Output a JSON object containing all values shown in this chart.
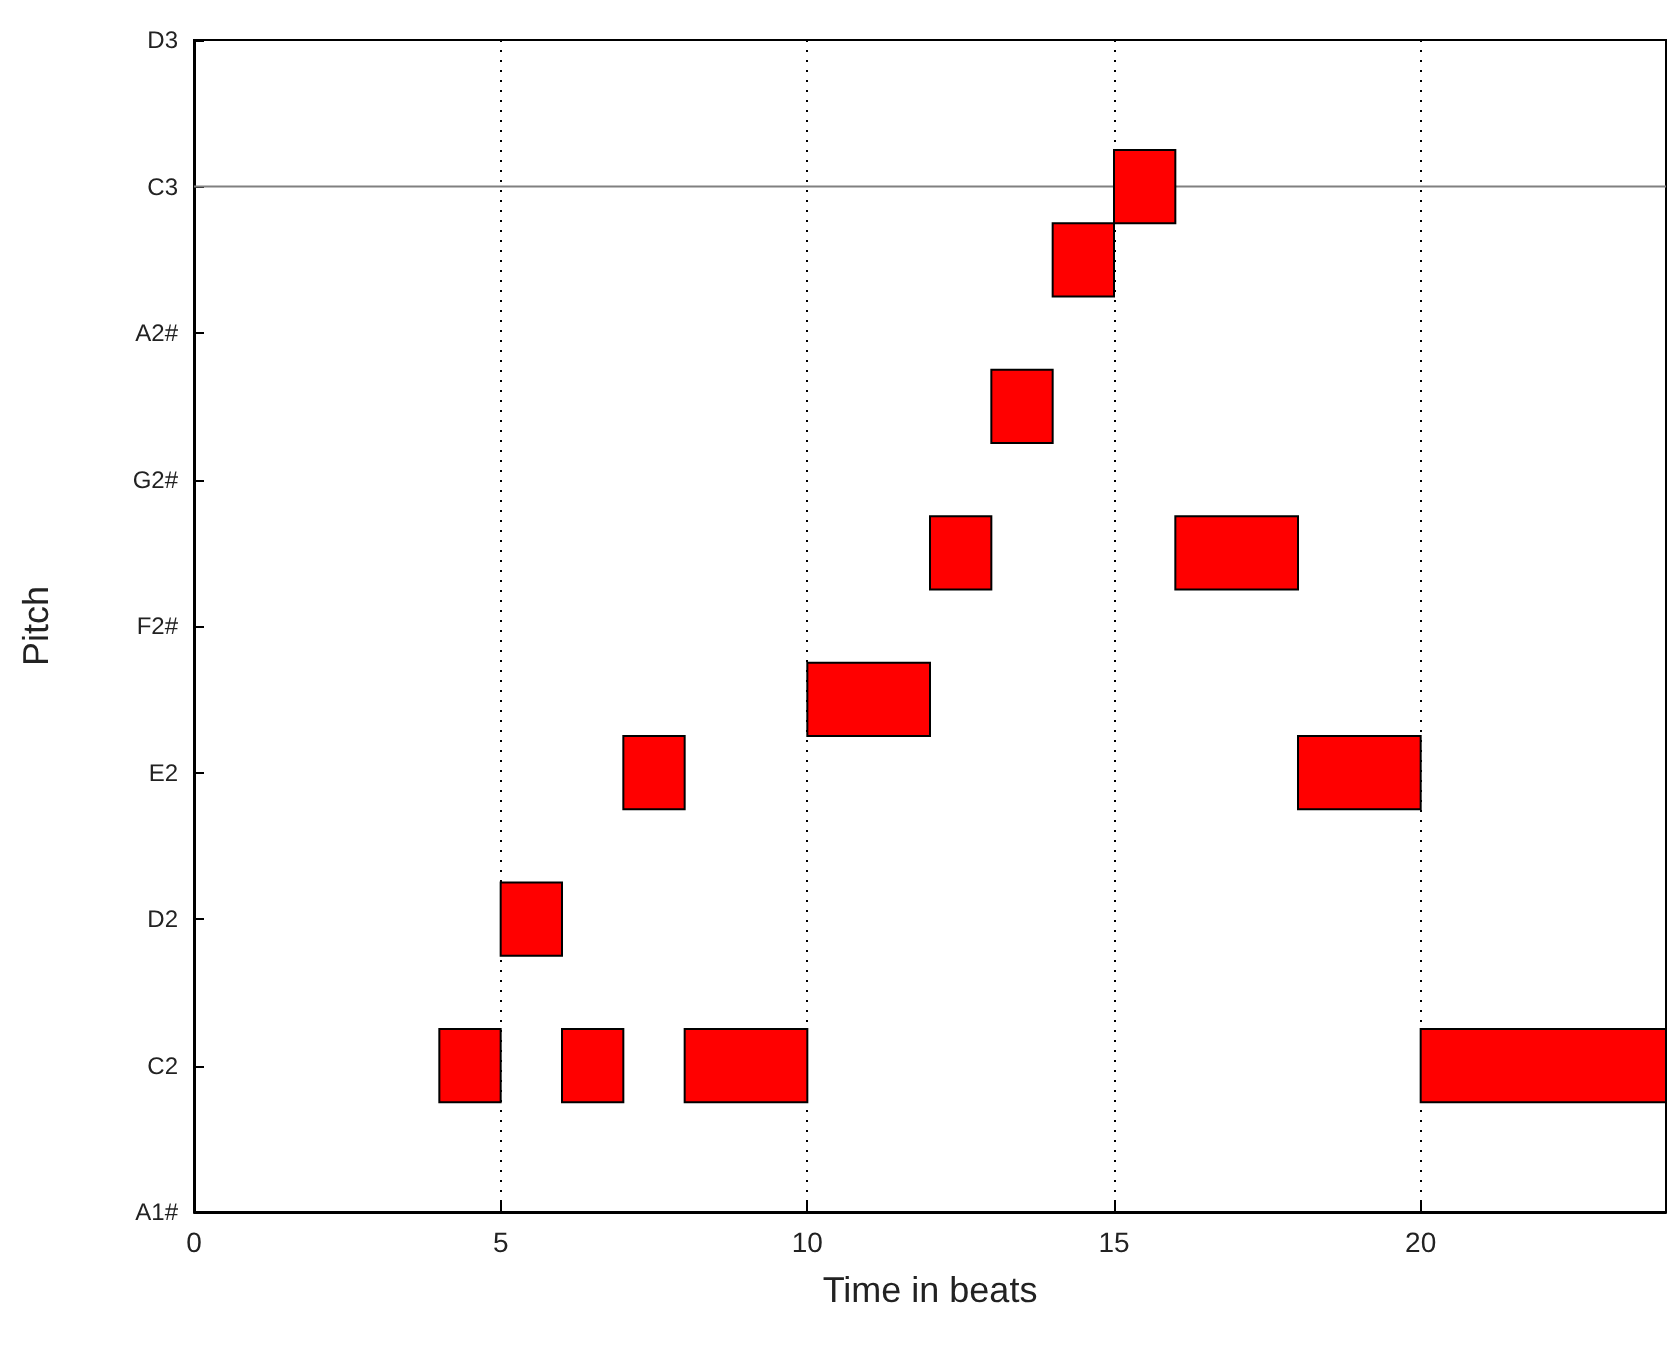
{
  "chart_data": {
    "type": "bar",
    "orientation": "horizontal",
    "xlabel": "Time in beats",
    "ylabel": "Pitch",
    "categories": [
      "D3",
      null,
      "C3",
      null,
      "A2#",
      null,
      "G2#",
      null,
      "F2#",
      null,
      "E2",
      null,
      "D2",
      null,
      "C2",
      null,
      "A1#"
    ],
    "series": [
      {
        "color": "#ff0000",
        "base": [
          null,
          null,
          15,
          14,
          null,
          13,
          null,
          12,
          null,
          10,
          7,
          null,
          5,
          null,
          4,
          null,
          null
        ],
        "values": [
          null,
          null,
          1,
          1,
          null,
          1,
          null,
          1,
          null,
          2,
          1,
          null,
          1,
          null,
          1,
          null,
          null
        ]
      },
      {
        "color": "#ff0000",
        "base": [
          null,
          null,
          null,
          null,
          null,
          null,
          null,
          16,
          null,
          null,
          18,
          null,
          null,
          null,
          6,
          null,
          null
        ],
        "values": [
          null,
          null,
          null,
          null,
          null,
          null,
          null,
          2,
          null,
          null,
          2,
          null,
          null,
          null,
          1,
          null,
          null
        ]
      },
      {
        "color": "#ff0000",
        "base": [
          null,
          null,
          null,
          null,
          null,
          null,
          null,
          null,
          null,
          null,
          null,
          null,
          null,
          null,
          8,
          null,
          null
        ],
        "values": [
          null,
          null,
          null,
          null,
          null,
          null,
          null,
          null,
          null,
          null,
          null,
          null,
          null,
          null,
          2,
          null,
          null
        ]
      },
      {
        "color": "#ff0000",
        "base": [
          null,
          null,
          null,
          null,
          null,
          null,
          null,
          null,
          null,
          null,
          null,
          null,
          null,
          null,
          20,
          null,
          null
        ],
        "values": [
          null,
          null,
          null,
          null,
          null,
          null,
          null,
          null,
          null,
          null,
          null,
          null,
          null,
          null,
          4,
          null,
          null
        ]
      }
    ],
    "xlim": [
      0,
      24
    ],
    "xticks": [
      0,
      5,
      10,
      15,
      20
    ],
    "grid": "x",
    "ref_lines": [
      {
        "axis": "y",
        "value": "C3",
        "color": "#808080"
      }
    ]
  }
}
